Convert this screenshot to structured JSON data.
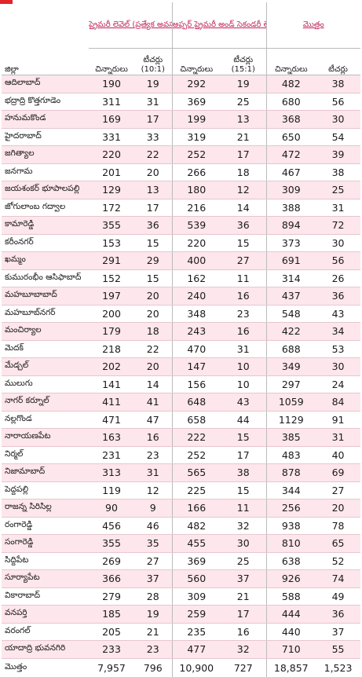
{
  "header": {
    "primary": "ప్రైమరీ లెవెల్ (ప్రత్యేక అవసరాలుగలచిన్నారులు)",
    "upper": "అప్పర్ ప్రైమరీ అండ్ సెకండరీ లెవెల్ (ప్రత్యేక అవసరాలుగల చిన్నారులు)",
    "total": "మొత్తం",
    "district": "జిల్లా",
    "children": "చిన్నారులు",
    "teachers": "టీచర్లు",
    "ratio_primary": "(10:1)",
    "ratio_upper": "(15:1)"
  },
  "rows": [
    {
      "name": "ఆదిలాబాద్",
      "p_c": "190",
      "p_t": "19",
      "u_c": "292",
      "u_t": "19",
      "t_c": "482",
      "t_t": "38"
    },
    {
      "name": "భద్రాద్రి కొత్తగూడెం",
      "p_c": "311",
      "p_t": "31",
      "u_c": "369",
      "u_t": "25",
      "t_c": "680",
      "t_t": "56"
    },
    {
      "name": "హనుమకొండ",
      "p_c": "169",
      "p_t": "17",
      "u_c": "199",
      "u_t": "13",
      "t_c": "368",
      "t_t": "30"
    },
    {
      "name": "హైదరాబాద్",
      "p_c": "331",
      "p_t": "33",
      "u_c": "319",
      "u_t": "21",
      "t_c": "650",
      "t_t": "54"
    },
    {
      "name": "జగిత్యాల",
      "p_c": "220",
      "p_t": "22",
      "u_c": "252",
      "u_t": "17",
      "t_c": "472",
      "t_t": "39"
    },
    {
      "name": "జనగామ",
      "p_c": "201",
      "p_t": "20",
      "u_c": "266",
      "u_t": "18",
      "t_c": "467",
      "t_t": "38"
    },
    {
      "name": "జయశంకర్ భూపాలపల్లి",
      "p_c": "129",
      "p_t": "13",
      "u_c": "180",
      "u_t": "12",
      "t_c": "309",
      "t_t": "25"
    },
    {
      "name": "జోగులాంబ గద్వాల",
      "p_c": "172",
      "p_t": "17",
      "u_c": "216",
      "u_t": "14",
      "t_c": "388",
      "t_t": "31"
    },
    {
      "name": "కామారెడ్డి",
      "p_c": "355",
      "p_t": "36",
      "u_c": "539",
      "u_t": "36",
      "t_c": "894",
      "t_t": "72"
    },
    {
      "name": "కరీంనగర్",
      "p_c": "153",
      "p_t": "15",
      "u_c": "220",
      "u_t": "15",
      "t_c": "373",
      "t_t": "30"
    },
    {
      "name": "ఖమ్మం",
      "p_c": "291",
      "p_t": "29",
      "u_c": "400",
      "u_t": "27",
      "t_c": "691",
      "t_t": "56"
    },
    {
      "name": "కుమురంభీం ఆసిఫాబాద్",
      "p_c": "152",
      "p_t": "15",
      "u_c": "162",
      "u_t": "11",
      "t_c": "314",
      "t_t": "26"
    },
    {
      "name": "మహబూబాబాద్",
      "p_c": "197",
      "p_t": "20",
      "u_c": "240",
      "u_t": "16",
      "t_c": "437",
      "t_t": "36"
    },
    {
      "name": "మహబూబ్‌నగర్",
      "p_c": "200",
      "p_t": "20",
      "u_c": "348",
      "u_t": "23",
      "t_c": "548",
      "t_t": "43"
    },
    {
      "name": "మంచిర్యాల",
      "p_c": "179",
      "p_t": "18",
      "u_c": "243",
      "u_t": "16",
      "t_c": "422",
      "t_t": "34"
    },
    {
      "name": "మెదక్",
      "p_c": "218",
      "p_t": "22",
      "u_c": "470",
      "u_t": "31",
      "t_c": "688",
      "t_t": "53"
    },
    {
      "name": "మేడ్చల్",
      "p_c": "202",
      "p_t": "20",
      "u_c": "147",
      "u_t": "10",
      "t_c": "349",
      "t_t": "30"
    },
    {
      "name": "ములుగు",
      "p_c": "141",
      "p_t": "14",
      "u_c": "156",
      "u_t": "10",
      "t_c": "297",
      "t_t": "24"
    },
    {
      "name": "నాగర్‌ కర్నూల్",
      "p_c": "411",
      "p_t": "41",
      "u_c": "648",
      "u_t": "43",
      "t_c": "1059",
      "t_t": "84"
    },
    {
      "name": "నల్లగొండ",
      "p_c": "471",
      "p_t": "47",
      "u_c": "658",
      "u_t": "44",
      "t_c": "1129",
      "t_t": "91"
    },
    {
      "name": "నారాయణపేట",
      "p_c": "163",
      "p_t": "16",
      "u_c": "222",
      "u_t": "15",
      "t_c": "385",
      "t_t": "31"
    },
    {
      "name": "నిర్మల్",
      "p_c": "231",
      "p_t": "23",
      "u_c": "252",
      "u_t": "17",
      "t_c": "483",
      "t_t": "40"
    },
    {
      "name": "నిజామాబాద్",
      "p_c": "313",
      "p_t": "31",
      "u_c": "565",
      "u_t": "38",
      "t_c": "878",
      "t_t": "69"
    },
    {
      "name": "పెద్దపల్లి",
      "p_c": "119",
      "p_t": "12",
      "u_c": "225",
      "u_t": "15",
      "t_c": "344",
      "t_t": "27"
    },
    {
      "name": "రాజన్న సిరిసిల్ల",
      "p_c": "90",
      "p_t": "9",
      "u_c": "166",
      "u_t": "11",
      "t_c": "256",
      "t_t": "20"
    },
    {
      "name": "రంగారెడ్డి",
      "p_c": "456",
      "p_t": "46",
      "u_c": "482",
      "u_t": "32",
      "t_c": "938",
      "t_t": "78"
    },
    {
      "name": "సంగారెడ్డి",
      "p_c": "355",
      "p_t": "35",
      "u_c": "455",
      "u_t": "30",
      "t_c": "810",
      "t_t": "65"
    },
    {
      "name": "సిద్దిపేట",
      "p_c": "269",
      "p_t": "27",
      "u_c": "369",
      "u_t": "25",
      "t_c": "638",
      "t_t": "52"
    },
    {
      "name": "సూర్యాపేట",
      "p_c": "366",
      "p_t": "37",
      "u_c": "560",
      "u_t": "37",
      "t_c": "926",
      "t_t": "74"
    },
    {
      "name": "వికారాబాద్",
      "p_c": "279",
      "p_t": "28",
      "u_c": "309",
      "u_t": "21",
      "t_c": "588",
      "t_t": "49"
    },
    {
      "name": "వనపర్తి",
      "p_c": "185",
      "p_t": "19",
      "u_c": "259",
      "u_t": "17",
      "t_c": "444",
      "t_t": "36"
    },
    {
      "name": "వరంగల్",
      "p_c": "205",
      "p_t": "21",
      "u_c": "235",
      "u_t": "16",
      "t_c": "440",
      "t_t": "37"
    },
    {
      "name": "యాదాద్రి భువనగిరి",
      "p_c": "233",
      "p_t": "23",
      "u_c": "477",
      "u_t": "32",
      "t_c": "710",
      "t_t": "55"
    }
  ],
  "totals": {
    "name": "మొత్తం",
    "p_c": "7,957",
    "p_t": "796",
    "u_c": "10,900",
    "u_t": "727",
    "t_c": "18,857",
    "t_t": "1,523"
  },
  "colors": {
    "accent": "#c0285a",
    "row_tint": "#fde6ec",
    "corner": "#e2242b"
  }
}
